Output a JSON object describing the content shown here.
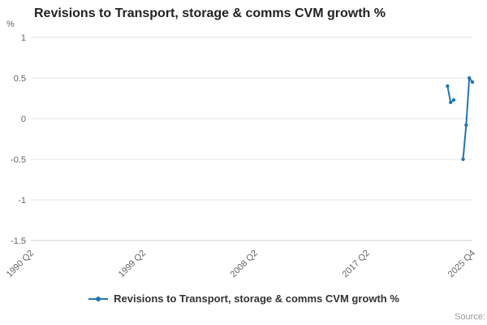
{
  "header": {
    "title": "Revisions to Transport, storage & comms CVM growth %"
  },
  "chart_data": {
    "type": "line",
    "title": "Revisions to Transport, storage & comms CVM growth %",
    "ylabel": "%",
    "ylim": [
      -1.5,
      1
    ],
    "yticks": [
      1,
      0.5,
      0,
      -0.5,
      -1,
      -1.5
    ],
    "x_axis": {
      "unit": "quarter",
      "range_labels": [
        "1990 Q2",
        "2025 Q4"
      ],
      "min_index": 0,
      "max_index": 142,
      "ticks": [
        {
          "label": "1990 Q2",
          "index": 0
        },
        {
          "label": "1999 Q2",
          "index": 36
        },
        {
          "label": "2008 Q2",
          "index": 72
        },
        {
          "label": "2017 Q2",
          "index": 108
        },
        {
          "label": "2025 Q4",
          "index": 142
        }
      ]
    },
    "grid": true,
    "legend_position": "bottom",
    "series": [
      {
        "name": "Revisions to Transport, storage & comms CVM growth %",
        "color": "#2076b4",
        "segments": [
          [
            {
              "x": "2023 Q4",
              "index": 134,
              "y": 0.4
            },
            {
              "x": "2024 Q1",
              "index": 135,
              "y": 0.2
            },
            {
              "x": "2024 Q2",
              "index": 136,
              "y": 0.23
            }
          ],
          [
            {
              "x": "2025 Q1",
              "index": 139,
              "y": -0.5
            },
            {
              "x": "2025 Q2",
              "index": 140,
              "y": -0.08
            },
            {
              "x": "2025 Q3",
              "index": 141,
              "y": 0.5
            },
            {
              "x": "2025 Q4",
              "index": 142,
              "y": 0.45
            }
          ]
        ]
      }
    ]
  },
  "legend": {
    "label": "Revisions to Transport, storage & comms CVM growth %"
  },
  "footer": {
    "source_label": "Source:"
  }
}
